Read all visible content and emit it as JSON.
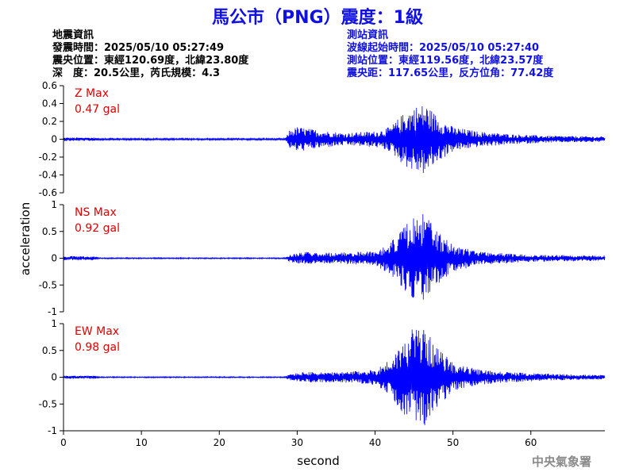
{
  "title": "馬公市（PNG）震度：1級",
  "quake_info": {
    "heading": "地震資訊",
    "origin_time": "發震時間：2025/05/10 05:27:49",
    "epicenter": "震央位置：東經120.69度，北緯23.80度",
    "depth_magnitude": "深　度：20.5公里，芮氏規模：4.3"
  },
  "station_info": {
    "heading": "測站資訊",
    "wave_start": "波線起始時間：2025/05/10 05:27:40",
    "location": "測站位置：東經119.56度，北緯23.57度",
    "distance": "震央距：117.65公里，反方位角：77.42度"
  },
  "agency": "中央氣象署",
  "colors": {
    "title": "#1010e0",
    "trace": "#0000ff",
    "max_label": "#e00000",
    "axis": "#000000"
  },
  "chart_data": {
    "type": "line",
    "xlabel": "second",
    "ylabel": "acceleration",
    "xlim": [
      0,
      69.5
    ],
    "xticks": [
      0,
      10,
      20,
      30,
      40,
      50,
      60
    ],
    "grid": false,
    "panels": [
      {
        "name": "Z",
        "max_label": "Z Max",
        "max_value": "0.47 gal",
        "ylim": [
          -0.6,
          0.6
        ],
        "yticks": [
          0.6,
          0.4,
          0.2,
          0,
          -0.2,
          -0.4,
          -0.6
        ],
        "ytick_labels": [
          "0.6",
          "0.4",
          "0.2",
          "0",
          "-0.2",
          "-0.4",
          "-0.6"
        ],
        "envelope": [
          [
            0,
            0.02
          ],
          [
            4,
            0.02
          ],
          [
            4.5,
            0.01
          ],
          [
            28.5,
            0.01
          ],
          [
            29,
            0.1
          ],
          [
            30,
            0.14
          ],
          [
            33,
            0.1
          ],
          [
            36,
            0.07
          ],
          [
            40,
            0.09
          ],
          [
            42,
            0.14
          ],
          [
            43.5,
            0.28
          ],
          [
            45,
            0.37
          ],
          [
            46.5,
            0.4
          ],
          [
            48,
            0.26
          ],
          [
            50,
            0.14
          ],
          [
            53,
            0.09
          ],
          [
            57,
            0.06
          ],
          [
            62,
            0.04
          ],
          [
            69.5,
            0.03
          ]
        ]
      },
      {
        "name": "NS",
        "max_label": "NS Max",
        "max_value": "0.92 gal",
        "ylim": [
          -1,
          1
        ],
        "yticks": [
          1,
          0.5,
          0,
          -0.5,
          -1
        ],
        "ytick_labels": [
          "1",
          "0.5",
          "0",
          "-0.5",
          "-1"
        ],
        "envelope": [
          [
            0,
            0.04
          ],
          [
            4,
            0.04
          ],
          [
            4.5,
            0.01
          ],
          [
            28.5,
            0.01
          ],
          [
            29,
            0.07
          ],
          [
            31,
            0.12
          ],
          [
            35,
            0.1
          ],
          [
            40,
            0.14
          ],
          [
            42,
            0.3
          ],
          [
            43.5,
            0.55
          ],
          [
            45,
            0.78
          ],
          [
            46.5,
            0.85
          ],
          [
            48,
            0.5
          ],
          [
            50,
            0.25
          ],
          [
            53,
            0.14
          ],
          [
            58,
            0.08
          ],
          [
            63,
            0.06
          ],
          [
            69.5,
            0.05
          ]
        ]
      },
      {
        "name": "EW",
        "max_label": "EW Max",
        "max_value": "0.98 gal",
        "ylim": [
          -1,
          1
        ],
        "yticks": [
          1,
          0.5,
          0,
          -0.5,
          -1
        ],
        "ytick_labels": [
          "1",
          "0.5",
          "0",
          "-0.5",
          "-1"
        ],
        "envelope": [
          [
            0,
            0.03
          ],
          [
            4,
            0.03
          ],
          [
            4.5,
            0.01
          ],
          [
            28.5,
            0.01
          ],
          [
            29,
            0.06
          ],
          [
            31,
            0.1
          ],
          [
            35,
            0.09
          ],
          [
            40,
            0.14
          ],
          [
            42,
            0.35
          ],
          [
            43.5,
            0.65
          ],
          [
            45,
            0.95
          ],
          [
            46,
            0.98
          ],
          [
            48,
            0.55
          ],
          [
            50,
            0.28
          ],
          [
            53,
            0.15
          ],
          [
            58,
            0.09
          ],
          [
            63,
            0.06
          ],
          [
            69.5,
            0.04
          ]
        ]
      }
    ]
  }
}
